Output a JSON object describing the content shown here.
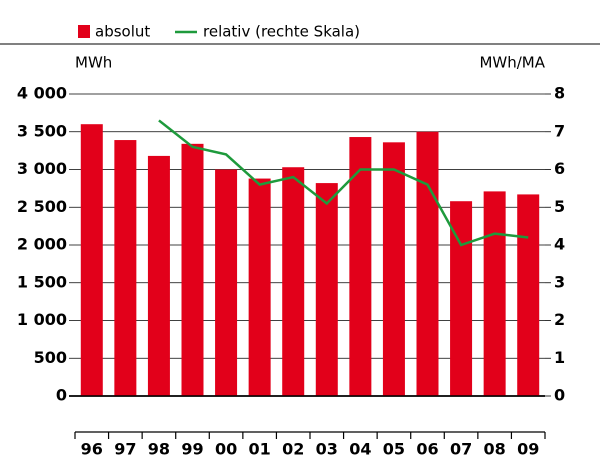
{
  "chart_data": {
    "type": "bar_line",
    "y_label": "MWh",
    "y2_label": "MWh/MA",
    "categories": [
      "96",
      "97",
      "98",
      "99",
      "00",
      "01",
      "02",
      "03",
      "04",
      "05",
      "06",
      "07",
      "08",
      "09"
    ],
    "series": [
      {
        "name": "absolut",
        "type": "bar",
        "color": "#e2001a",
        "values": [
          3600,
          3390,
          3180,
          3340,
          3000,
          2880,
          3030,
          2820,
          3430,
          3360,
          3500,
          2580,
          2710,
          2670
        ]
      },
      {
        "name": "relativ (rechte Skala)",
        "type": "line",
        "axis": "y2",
        "color": "#1e9a3c",
        "values": [
          null,
          null,
          7.3,
          6.6,
          6.4,
          5.6,
          5.8,
          5.1,
          6.0,
          6.0,
          5.6,
          4.0,
          4.3,
          4.2
        ]
      }
    ],
    "ylim": [
      0,
      4000
    ],
    "yticks": [
      0,
      500,
      {
        "value": 1000,
        "label": "1 000"
      },
      {
        "value": 1500,
        "label": "1 500"
      },
      {
        "value": 2000,
        "label": "2 000"
      },
      {
        "value": 2500,
        "label": "2 500"
      },
      {
        "value": 3000,
        "label": "3 000"
      },
      {
        "value": 3500,
        "label": "3 500"
      },
      {
        "value": 4000,
        "label": "4 000"
      }
    ],
    "y2lim": [
      0,
      8
    ],
    "y2ticks": [
      0,
      1,
      2,
      3,
      4,
      5,
      6,
      7,
      8
    ],
    "grid": true
  }
}
